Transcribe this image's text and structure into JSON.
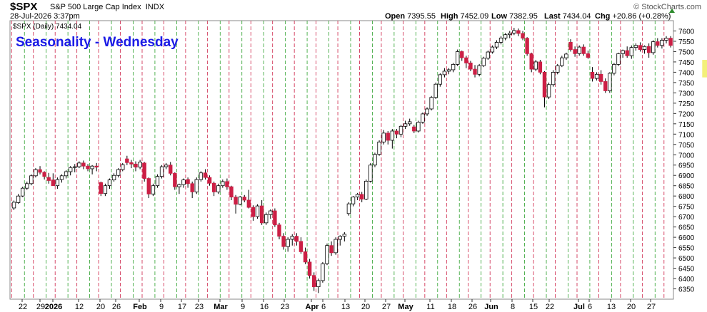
{
  "header": {
    "symbol": "$SPX",
    "name": "S&P 500 Large Cap Index",
    "exchange": "INDX",
    "date": "28-Jul-2026 3:37pm",
    "watermark": "© StockCharts.com",
    "open_label": "Open",
    "open": "7395.55",
    "high_label": "High",
    "high": "7452.09",
    "low_label": "Low",
    "low": "7382.95",
    "last_label": "Last",
    "last": "7434.04",
    "chg_label": "Chg",
    "chg": "+20.86 (+0.28%)"
  },
  "chart_data": {
    "type": "candlestick",
    "title": "Seasonality - Wednesday",
    "legend": "$SPX (Daily) 7434.04",
    "ylim": [
      6300,
      7650
    ],
    "y_ticks": [
      6350,
      6400,
      6450,
      6500,
      6550,
      6600,
      6650,
      6700,
      6750,
      6800,
      6850,
      6900,
      6950,
      7000,
      7050,
      7100,
      7150,
      7200,
      7250,
      7300,
      7350,
      7400,
      7450,
      7500,
      7550,
      7600
    ],
    "x_tick_labels": [
      "22",
      "29",
      "2026",
      "12",
      "20",
      "26",
      "Feb",
      "9",
      "17",
      "23",
      "Mar",
      "9",
      "16",
      "23",
      "Apr",
      "6",
      "13",
      "20",
      "27",
      "May",
      "11",
      "18",
      "26",
      "Jun",
      "8",
      "15",
      "22",
      "Jul",
      "6",
      "13",
      "20",
      "27"
    ],
    "month_labels": [
      "2026",
      "Feb",
      "Mar",
      "Apr",
      "May",
      "Jun",
      "Jul"
    ],
    "colors": {
      "up": "#ffffff",
      "down": "#cc1f45",
      "wednesday_line": "#cc1f45",
      "other_line": "#2ca02c",
      "last_highlight": "#f2ee6a",
      "title": "#1a1ae6"
    },
    "candles": [
      [
        6742,
        6778,
        6732,
        6770
      ],
      [
        6768,
        6810,
        6762,
        6800
      ],
      [
        6800,
        6845,
        6795,
        6838
      ],
      [
        6838,
        6870,
        6830,
        6860
      ],
      [
        6860,
        6905,
        6852,
        6898
      ],
      [
        6898,
        6935,
        6890,
        6928
      ],
      [
        6928,
        6945,
        6905,
        6915
      ],
      [
        6915,
        6920,
        6880,
        6895
      ],
      [
        6890,
        6912,
        6860,
        6875
      ],
      [
        6878,
        6910,
        6855,
        6850
      ],
      [
        6850,
        6890,
        6835,
        6880
      ],
      [
        6880,
        6905,
        6865,
        6898
      ],
      [
        6898,
        6925,
        6885,
        6918
      ],
      [
        6918,
        6945,
        6900,
        6938
      ],
      [
        6938,
        6955,
        6915,
        6942
      ],
      [
        6942,
        6968,
        6935,
        6960
      ],
      [
        6960,
        6972,
        6930,
        6945
      ],
      [
        6945,
        6955,
        6920,
        6932
      ],
      [
        6932,
        6950,
        6905,
        6945
      ],
      [
        6945,
        6960,
        6920,
        6940
      ],
      [
        6865,
        6870,
        6800,
        6812
      ],
      [
        6812,
        6860,
        6800,
        6850
      ],
      [
        6850,
        6885,
        6835,
        6878
      ],
      [
        6878,
        6910,
        6870,
        6900
      ],
      [
        6900,
        6935,
        6890,
        6928
      ],
      [
        6928,
        6960,
        6920,
        6952
      ],
      [
        6980,
        6995,
        6950,
        6962
      ],
      [
        6962,
        6975,
        6935,
        6955
      ],
      [
        6955,
        6968,
        6920,
        6940
      ],
      [
        6940,
        6975,
        6930,
        6965
      ],
      [
        6960,
        6965,
        6870,
        6885
      ],
      [
        6885,
        6890,
        6790,
        6810
      ],
      [
        6810,
        6860,
        6800,
        6850
      ],
      [
        6850,
        6905,
        6840,
        6895
      ],
      [
        6895,
        6950,
        6885,
        6942
      ],
      [
        6942,
        6960,
        6930,
        6950
      ],
      [
        6950,
        6965,
        6900,
        6910
      ],
      [
        6910,
        6915,
        6830,
        6845
      ],
      [
        6845,
        6860,
        6810,
        6855
      ],
      [
        6855,
        6885,
        6840,
        6878
      ],
      [
        6880,
        6890,
        6840,
        6860
      ],
      [
        6860,
        6870,
        6790,
        6820
      ],
      [
        6820,
        6890,
        6810,
        6880
      ],
      [
        6880,
        6920,
        6870,
        6912
      ],
      [
        6912,
        6930,
        6880,
        6890
      ],
      [
        6890,
        6900,
        6850,
        6862
      ],
      [
        6862,
        6870,
        6800,
        6820
      ],
      [
        6820,
        6860,
        6810,
        6850
      ],
      [
        6850,
        6880,
        6840,
        6870
      ],
      [
        6870,
        6885,
        6830,
        6845
      ],
      [
        6845,
        6850,
        6780,
        6795
      ],
      [
        6795,
        6805,
        6715,
        6760
      ],
      [
        6760,
        6800,
        6755,
        6795
      ],
      [
        6795,
        6805,
        6770,
        6780
      ],
      [
        6780,
        6830,
        6740,
        6745
      ],
      [
        6745,
        6755,
        6680,
        6700
      ],
      [
        6700,
        6760,
        6690,
        6752
      ],
      [
        6752,
        6780,
        6660,
        6670
      ],
      [
        6670,
        6720,
        6660,
        6710
      ],
      [
        6710,
        6735,
        6690,
        6728
      ],
      [
        6728,
        6740,
        6650,
        6660
      ],
      [
        6660,
        6670,
        6590,
        6605
      ],
      [
        6605,
        6620,
        6540,
        6555
      ],
      [
        6555,
        6600,
        6530,
        6590
      ],
      [
        6590,
        6615,
        6560,
        6605
      ],
      [
        6605,
        6620,
        6560,
        6580
      ],
      [
        6580,
        6600,
        6520,
        6530
      ],
      [
        6530,
        6550,
        6470,
        6480
      ],
      [
        6480,
        6495,
        6400,
        6415
      ],
      [
        6415,
        6430,
        6340,
        6360
      ],
      [
        6360,
        6400,
        6330,
        6390
      ],
      [
        6390,
        6480,
        6380,
        6472
      ],
      [
        6472,
        6570,
        6465,
        6560
      ],
      [
        6560,
        6580,
        6510,
        6525
      ],
      [
        6525,
        6600,
        6515,
        6590
      ],
      [
        6590,
        6610,
        6560,
        6605
      ],
      [
        6605,
        6625,
        6580,
        6615
      ],
      [
        6715,
        6770,
        6705,
        6762
      ],
      [
        6762,
        6800,
        6750,
        6795
      ],
      [
        6795,
        6815,
        6780,
        6808
      ],
      [
        6808,
        6820,
        6770,
        6785
      ],
      [
        6785,
        6880,
        6780,
        6872
      ],
      [
        6872,
        6960,
        6865,
        6950
      ],
      [
        6950,
        7010,
        6940,
        7002
      ],
      [
        7002,
        7070,
        6995,
        7062
      ],
      [
        7062,
        7120,
        7050,
        7105
      ],
      [
        7105,
        7115,
        7050,
        7070
      ],
      [
        7070,
        7125,
        7030,
        7115
      ],
      [
        7115,
        7125,
        7080,
        7100
      ],
      [
        7100,
        7145,
        7085,
        7138
      ],
      [
        7138,
        7165,
        7125,
        7150
      ],
      [
        7150,
        7175,
        7140,
        7160
      ],
      [
        7135,
        7145,
        7105,
        7115
      ],
      [
        7115,
        7165,
        7108,
        7158
      ],
      [
        7158,
        7205,
        7150,
        7198
      ],
      [
        7198,
        7230,
        7188,
        7222
      ],
      [
        7222,
        7285,
        7215,
        7278
      ],
      [
        7278,
        7350,
        7270,
        7342
      ],
      [
        7342,
        7395,
        7330,
        7388
      ],
      [
        7388,
        7420,
        7375,
        7405
      ],
      [
        7405,
        7420,
        7390,
        7412
      ],
      [
        7412,
        7445,
        7400,
        7438
      ],
      [
        7438,
        7510,
        7430,
        7500
      ],
      [
        7500,
        7505,
        7455,
        7470
      ],
      [
        7470,
        7480,
        7420,
        7445
      ],
      [
        7445,
        7455,
        7405,
        7415
      ],
      [
        7415,
        7435,
        7375,
        7390
      ],
      [
        7390,
        7440,
        7380,
        7432
      ],
      [
        7432,
        7475,
        7425,
        7468
      ],
      [
        7468,
        7505,
        7460,
        7498
      ],
      [
        7498,
        7530,
        7490,
        7522
      ],
      [
        7522,
        7555,
        7512,
        7545
      ],
      [
        7545,
        7575,
        7535,
        7566
      ],
      [
        7566,
        7590,
        7555,
        7582
      ],
      [
        7582,
        7600,
        7565,
        7590
      ],
      [
        7590,
        7615,
        7580,
        7602
      ],
      [
        7602,
        7612,
        7575,
        7588
      ],
      [
        7588,
        7600,
        7555,
        7565
      ],
      [
        7565,
        7570,
        7480,
        7490
      ],
      [
        7490,
        7495,
        7400,
        7415
      ],
      [
        7415,
        7460,
        7405,
        7450
      ],
      [
        7450,
        7460,
        7390,
        7400
      ],
      [
        7400,
        7405,
        7230,
        7280
      ],
      [
        7280,
        7350,
        7270,
        7340
      ],
      [
        7340,
        7410,
        7330,
        7400
      ],
      [
        7400,
        7440,
        7390,
        7432
      ],
      [
        7432,
        7480,
        7425,
        7470
      ],
      [
        7470,
        7495,
        7460,
        7488
      ],
      [
        7545,
        7560,
        7500,
        7510
      ],
      [
        7510,
        7525,
        7475,
        7490
      ],
      [
        7490,
        7530,
        7480,
        7522
      ],
      [
        7522,
        7535,
        7480,
        7490
      ],
      [
        7490,
        7505,
        7465,
        7472
      ],
      [
        7400,
        7425,
        7355,
        7370
      ],
      [
        7370,
        7400,
        7360,
        7390
      ],
      [
        7390,
        7410,
        7340,
        7355
      ],
      [
        7355,
        7370,
        7300,
        7310
      ],
      [
        7310,
        7400,
        7300,
        7395
      ],
      [
        7395,
        7445,
        7385,
        7438
      ],
      [
        7438,
        7495,
        7430,
        7490
      ],
      [
        7490,
        7510,
        7470,
        7505
      ],
      [
        7505,
        7525,
        7470,
        7480
      ],
      [
        7480,
        7530,
        7465,
        7520
      ],
      [
        7520,
        7540,
        7505,
        7530
      ],
      [
        7530,
        7545,
        7500,
        7510
      ],
      [
        7510,
        7530,
        7490,
        7525
      ],
      [
        7525,
        7540,
        7470,
        7495
      ],
      [
        7495,
        7555,
        7485,
        7548
      ],
      [
        7548,
        7565,
        7520,
        7530
      ],
      [
        7530,
        7565,
        7515,
        7555
      ],
      [
        7555,
        7575,
        7540,
        7565
      ],
      [
        7565,
        7575,
        7520,
        7530
      ],
      [
        7530,
        7540,
        7480,
        7495
      ],
      [
        7495,
        7500,
        7450,
        7460
      ],
      [
        7460,
        7505,
        7450,
        7498
      ],
      [
        7498,
        7505,
        7480,
        7490
      ],
      [
        7420,
        7425,
        7400,
        7410
      ],
      [
        7410,
        7440,
        7395,
        7432
      ],
      [
        7432,
        7470,
        7420,
        7420
      ],
      [
        7395.55,
        7452.09,
        7382.95,
        7434.04
      ]
    ]
  }
}
